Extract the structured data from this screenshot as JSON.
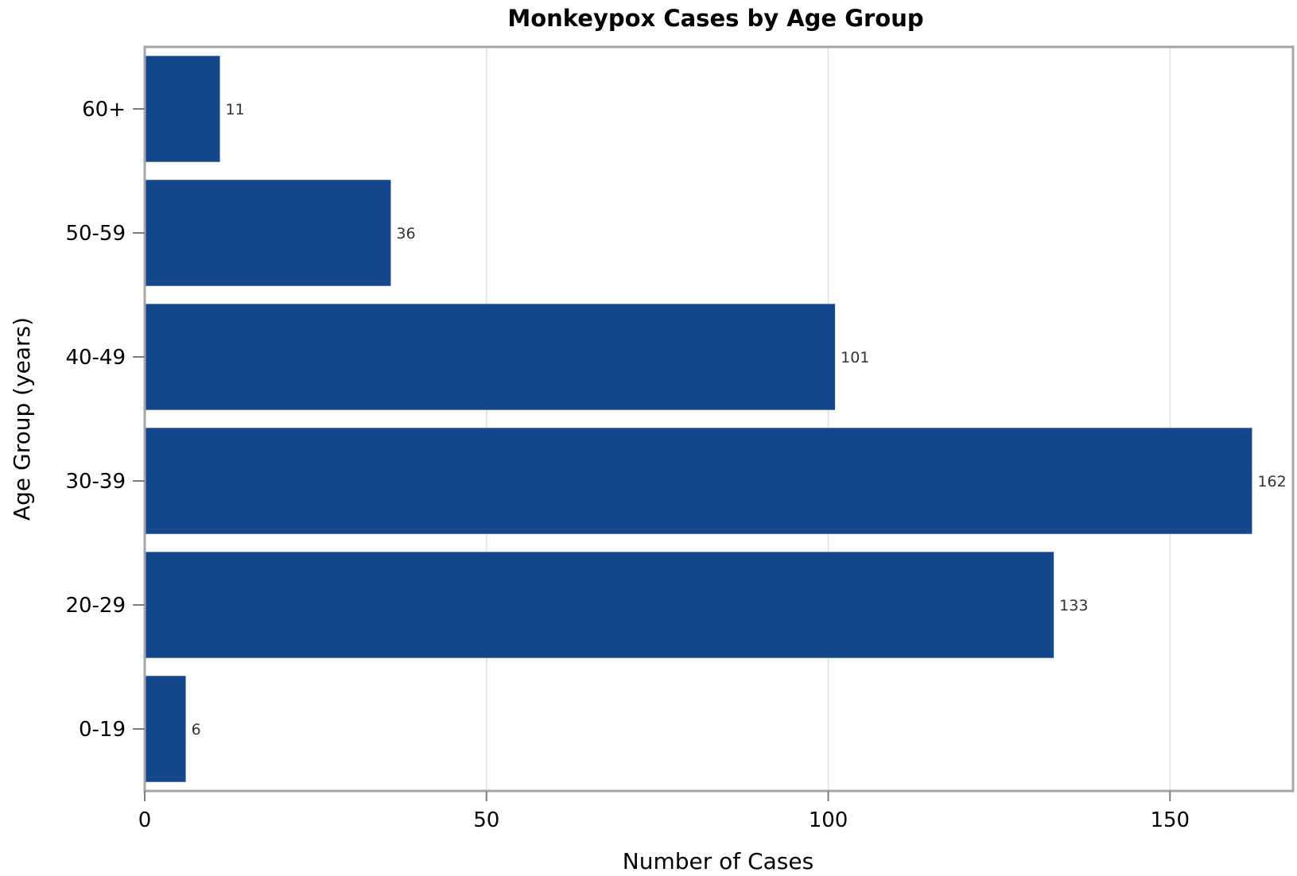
{
  "chart_data": {
    "type": "bar",
    "orientation": "horizontal",
    "title": "Monkeypox Cases by Age Group",
    "xlabel": "Number of Cases",
    "ylabel": "Age Group (years)",
    "categories": [
      "0-19",
      "20-29",
      "30-39",
      "40-49",
      "50-59",
      "60+"
    ],
    "values": [
      6,
      133,
      162,
      101,
      36,
      11
    ],
    "data_labels": [
      "6",
      "133",
      "162",
      "101",
      "36",
      "11"
    ],
    "xlim": [
      0,
      168
    ],
    "x_ticks": [
      0,
      50,
      100,
      150
    ],
    "x_tick_labels": [
      "0",
      "50",
      "100",
      "150"
    ],
    "grid": "vertical",
    "legend": "none",
    "colors": {
      "bar": "#15478A",
      "frame": "#A0A6AA",
      "grid": "#E0E0E0",
      "data_label": "#333333"
    }
  }
}
